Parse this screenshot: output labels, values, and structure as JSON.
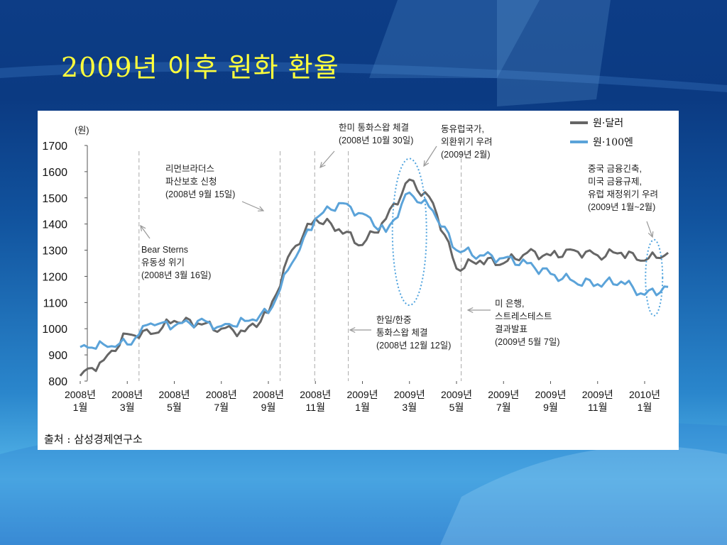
{
  "slide": {
    "title": "2009년 이후 원화 환율",
    "source": "출처 : 삼성경제연구소"
  },
  "colors": {
    "title": "#ffff3c",
    "won_dollar": "#666666",
    "won_100yen": "#5ba3d9",
    "guide": "#aaaaaa",
    "ellipse": "#4fa3de"
  },
  "chart_data": {
    "type": "line",
    "unit_label": "(원)",
    "ylim": [
      800,
      1700
    ],
    "y_ticks": [
      "800",
      "900",
      "1000",
      "1100",
      "1200",
      "1300",
      "1400",
      "1500",
      "1600",
      "1700"
    ],
    "x_ticks": [
      [
        "2008년",
        "1월"
      ],
      [
        "2008년",
        "3월"
      ],
      [
        "2008년",
        "5월"
      ],
      [
        "2008년",
        "7월"
      ],
      [
        "2008년",
        "9월"
      ],
      [
        "2008년",
        "11월"
      ],
      [
        "2009년",
        "1월"
      ],
      [
        "2009년",
        "3월"
      ],
      [
        "2009년",
        "5월"
      ],
      [
        "2009년",
        "7월"
      ],
      [
        "2009년",
        "9월"
      ],
      [
        "2009년",
        "11월"
      ],
      [
        "2010년",
        "1월"
      ]
    ],
    "x": [
      "2008-01",
      "2008-02",
      "2008-03",
      "2008-04",
      "2008-05",
      "2008-06",
      "2008-07",
      "2008-08",
      "2008-09",
      "2008-10",
      "2008-11",
      "2008-12",
      "2009-01",
      "2009-02",
      "2009-03",
      "2009-04",
      "2009-05",
      "2009-06",
      "2009-07",
      "2009-08",
      "2009-09",
      "2009-10",
      "2009-11",
      "2009-12",
      "2010-01",
      "2010-02"
    ],
    "series": [
      {
        "name": "원·달러",
        "values": [
          820,
          880,
          980,
          980,
          1030,
          1020,
          1000,
          990,
          1060,
          1300,
          1420,
          1380,
          1320,
          1420,
          1570,
          1480,
          1230,
          1260,
          1250,
          1290,
          1280,
          1300,
          1280,
          1290,
          1260,
          1290
        ]
      },
      {
        "name": "원·100엔",
        "values": [
          930,
          940,
          940,
          1020,
          1010,
          1030,
          1010,
          1030,
          1060,
          1250,
          1420,
          1480,
          1440,
          1370,
          1520,
          1450,
          1300,
          1280,
          1270,
          1250,
          1210,
          1180,
          1170,
          1180,
          1130,
          1160
        ]
      }
    ],
    "annotations": [
      {
        "id": "bear",
        "lines": [
          "Bear Sterns",
          "유동성 위기",
          "(2008년 3월 16일)"
        ]
      },
      {
        "id": "lehman",
        "lines": [
          "리먼브라더스",
          "파산보호 신청",
          "(2008년 9월 15일)"
        ]
      },
      {
        "id": "swap_us",
        "lines": [
          "한미 통화스왑 체결",
          "(2008년 10월 30일)"
        ]
      },
      {
        "id": "east_europe",
        "lines": [
          "동유럽국가,",
          "외환위기 우려",
          "(2009년 2월)"
        ]
      },
      {
        "id": "swap_jc",
        "lines": [
          "한일/한중",
          "통화스왑 체결",
          "(2008년 12월 12일)"
        ]
      },
      {
        "id": "stress",
        "lines": [
          "미 은행,",
          "스트레스테스트",
          "결과발표",
          "(2009년 5월 7일)"
        ]
      },
      {
        "id": "china",
        "lines": [
          "중국 금융긴축,",
          "미국 금융규제,",
          "유럽 재정위기 우려",
          "(2009년 1월~2월)"
        ]
      }
    ],
    "grid": false,
    "legend_position": "top-right"
  }
}
